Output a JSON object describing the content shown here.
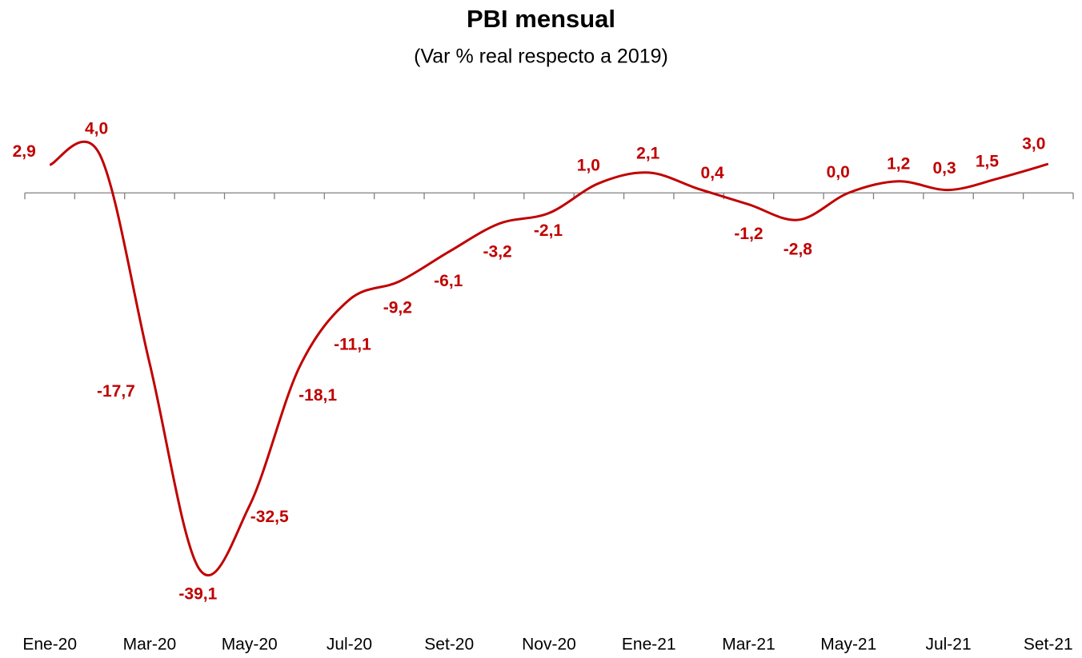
{
  "chart_data": {
    "type": "line",
    "title": "PBI mensual",
    "subtitle": "(Var % real respecto a 2019)",
    "categories": [
      "Ene-20",
      null,
      "Mar-20",
      null,
      "May-20",
      null,
      "Jul-20",
      null,
      "Set-20",
      null,
      "Nov-20",
      null,
      "Ene-21",
      null,
      "Mar-21",
      null,
      "May-21",
      null,
      "Jul-21",
      null,
      "Set-21"
    ],
    "values": [
      2.9,
      4.0,
      -17.7,
      -39.1,
      -32.5,
      -18.1,
      -11.1,
      -9.2,
      -6.1,
      -3.2,
      -2.1,
      1.0,
      2.1,
      0.4,
      -1.2,
      -2.8,
      0.0,
      1.2,
      0.3,
      1.5,
      3.0
    ],
    "value_labels": [
      "2,9",
      "4,0",
      "-17,7",
      "-39,1",
      "-32,5",
      "-18,1",
      "-11,1",
      "-9,2",
      "-6,1",
      "-3,2",
      "-2,1",
      "1,0",
      "2,1",
      "0,4",
      "-1,2",
      "-2,8",
      "0,0",
      "1,2",
      "0,3",
      "1,5",
      "3,0"
    ],
    "color": "#c00000",
    "ylim": [
      -40,
      5
    ]
  }
}
